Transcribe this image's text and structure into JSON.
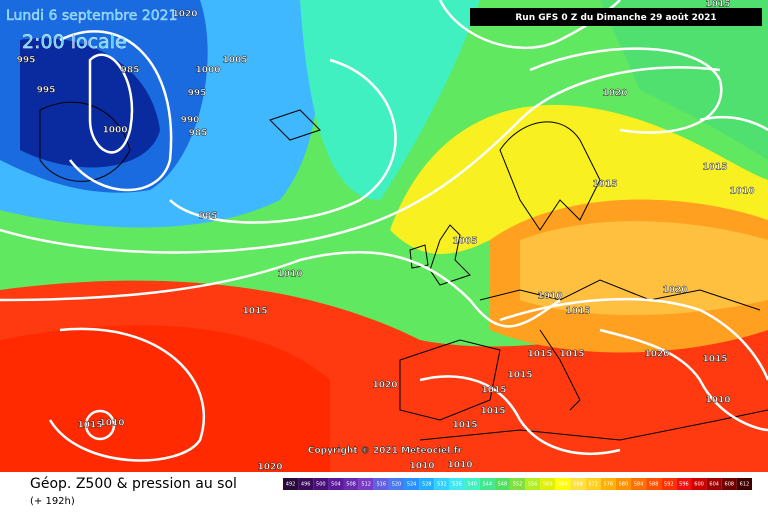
{
  "header": {
    "date": "Lundi 6 septembre 2021",
    "time": "2:00 locale",
    "run": "Run GFS 0 Z du Dimanche 29 août 2021"
  },
  "copyright": "Copyright © 2021 Meteociel.fr",
  "footer": {
    "title": "Géop. Z500 & pression au sol",
    "lead": "(+ 192h)"
  },
  "isobar_labels": [
    "995",
    "995",
    "985",
    "1000",
    "1020",
    "1000",
    "1005",
    "995",
    "990",
    "985",
    "985",
    "1010",
    "1015",
    "1005",
    "1020",
    "1015",
    "1015",
    "1010",
    "1020",
    "1010",
    "1015",
    "1020",
    "1015",
    "1015",
    "1020",
    "1015",
    "1015",
    "1015",
    "1015",
    "1015",
    "1010",
    "1010",
    "1015",
    "1020",
    "1010",
    "1010",
    "1015"
  ],
  "legend": {
    "values": [
      492,
      496,
      500,
      504,
      508,
      512,
      516,
      520,
      524,
      528,
      532,
      536,
      540,
      544,
      548,
      552,
      556,
      560,
      564,
      568,
      572,
      576,
      580,
      584,
      588,
      592,
      596,
      600,
      604,
      608,
      612
    ],
    "colors": [
      "#2a0a3a",
      "#3a0a5a",
      "#4b0f7a",
      "#5a1a9a",
      "#6a2ab0",
      "#7a3ac8",
      "#6060e0",
      "#4a7af0",
      "#2a90ff",
      "#20b0ff",
      "#30d0ff",
      "#40e8f0",
      "#40f0c0",
      "#40e890",
      "#50e060",
      "#80e040",
      "#b0f020",
      "#e0f000",
      "#ffff00",
      "#ffe040",
      "#ffd020",
      "#ffb000",
      "#ff9000",
      "#ff7000",
      "#ff5000",
      "#ff3000",
      "#f01010",
      "#d00000",
      "#a00000",
      "#700000",
      "#400000"
    ]
  }
}
